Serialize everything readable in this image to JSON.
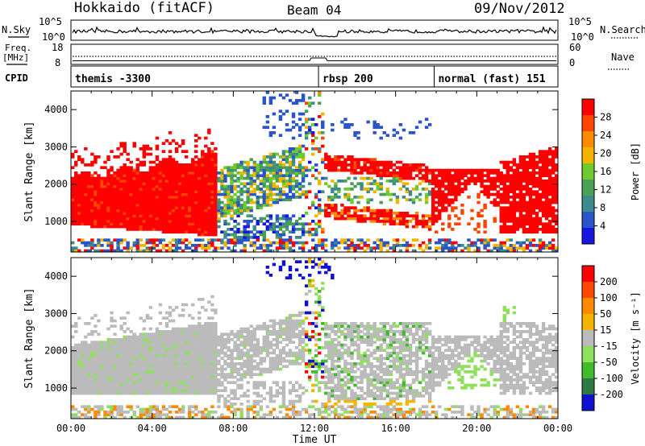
{
  "header": {
    "title": "Hokkaido (fitACF)",
    "beam": "Beam 04",
    "date": "09/Nov/2012"
  },
  "top_panels": {
    "nsky_label": "N.Sky",
    "nsky_ticks": [
      "10^5",
      "10^0"
    ],
    "nsearch_label": "N.Search",
    "freq_label": "Freq.",
    "freq_unit": "[MHz]",
    "freq_ticks": [
      "18",
      "8"
    ],
    "nave_label": "Nave",
    "nave_ticks": [
      "60",
      "0"
    ],
    "cpid_label": "CPID",
    "cpid_modes": [
      {
        "name": "themis -3300",
        "start_hour": 0
      },
      {
        "name": "rbsp 200",
        "start_hour": 12.2
      },
      {
        "name": "normal (fast) 151",
        "start_hour": 17.9
      }
    ]
  },
  "chart_data": [
    {
      "type": "heatmap",
      "quantity": "Power",
      "xlabel": "",
      "ylabel": "Slant Range [km]",
      "xlim": [
        0,
        24
      ],
      "ylim": [
        180,
        4500
      ],
      "yticks": [
        1000,
        2000,
        3000,
        4000
      ],
      "colorbar_label": "Power [dB]",
      "colorbar_ticks": [
        "28",
        "24",
        "20",
        "16",
        "12",
        "8",
        "4"
      ],
      "colorscale": [
        "#1616e0",
        "#2a55c8",
        "#3c8a8c",
        "#4aa055",
        "#6ecb2e",
        "#f5b400",
        "#ff8a00",
        "#ff4400",
        "#ff0000"
      ]
    },
    {
      "type": "heatmap",
      "quantity": "Velocity",
      "xlabel": "Time UT",
      "ylabel": "Slant Range [km]",
      "xlim": [
        0,
        24
      ],
      "ylim": [
        180,
        4500
      ],
      "yticks": [
        1000,
        2000,
        3000,
        4000
      ],
      "xticks": [
        "00:00",
        "04:00",
        "08:00",
        "12:00",
        "16:00",
        "20:00",
        "00:00"
      ],
      "colorbar_label": "Velocity [m s⁻¹]",
      "colorbar_ticks": [
        "200",
        "100",
        "50",
        "15",
        "-15",
        "-50",
        "-100",
        "-200"
      ],
      "colorscale": [
        "#1010d0",
        "#2e7a46",
        "#3fbb2c",
        "#8fe05c",
        "#bbbbbb",
        "#f5b400",
        "#ff8a00",
        "#ff4800",
        "#ff0000"
      ]
    }
  ]
}
